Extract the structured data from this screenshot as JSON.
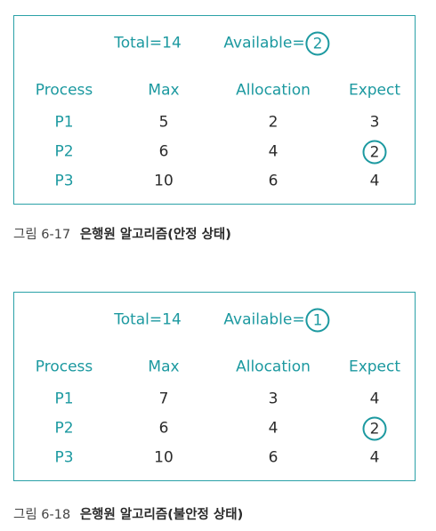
{
  "figures": [
    {
      "total": "Total=14",
      "available_label": "Available=",
      "available_value": "2",
      "headers": [
        "Process",
        "Max",
        "Allocation",
        "Expect"
      ],
      "rows": [
        {
          "process": "P1",
          "max": "5",
          "allocation": "2",
          "expect": "3",
          "expect_circled": false
        },
        {
          "process": "P2",
          "max": "6",
          "allocation": "4",
          "expect": "2",
          "expect_circled": true
        },
        {
          "process": "P3",
          "max": "10",
          "allocation": "6",
          "expect": "4",
          "expect_circled": false
        }
      ],
      "caption_label": "그림 6-17",
      "caption_title": "은행원 알고리즘(안정 상태)"
    },
    {
      "total": "Total=14",
      "available_label": "Available=",
      "available_value": "1",
      "headers": [
        "Process",
        "Max",
        "Allocation",
        "Expect"
      ],
      "rows": [
        {
          "process": "P1",
          "max": "7",
          "allocation": "3",
          "expect": "4",
          "expect_circled": false
        },
        {
          "process": "P2",
          "max": "6",
          "allocation": "4",
          "expect": "2",
          "expect_circled": true
        },
        {
          "process": "P3",
          "max": "10",
          "allocation": "6",
          "expect": "4",
          "expect_circled": false
        }
      ],
      "caption_label": "그림 6-18",
      "caption_title": "은행원 알고리즘(불안정 상태)"
    }
  ],
  "colors": {
    "accent": "#1c99a0",
    "text": "#2b2b2b",
    "border": "#2aa1a7"
  }
}
